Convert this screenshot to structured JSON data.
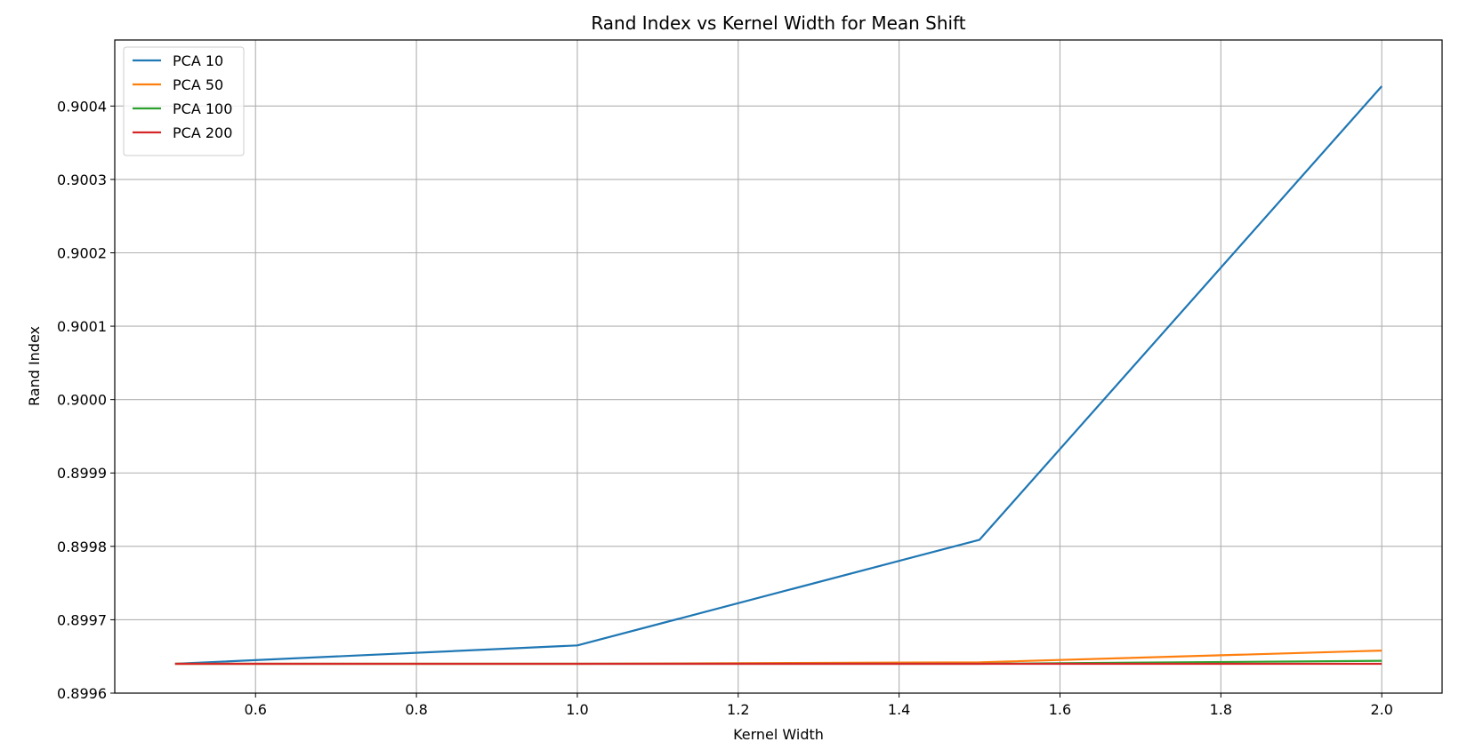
{
  "chart_data": {
    "type": "line",
    "title": "Rand Index vs Kernel Width for Mean Shift",
    "xlabel": "Kernel Width",
    "ylabel": "Rand Index",
    "xlim": [
      0.425,
      2.075
    ],
    "ylim": [
      0.8996,
      0.90049
    ],
    "xticks": [
      0.6,
      0.8,
      1.0,
      1.2,
      1.4,
      1.6,
      1.8,
      2.0
    ],
    "xtick_labels": [
      "0.6",
      "0.8",
      "1.0",
      "1.2",
      "1.4",
      "1.6",
      "1.8",
      "2.0"
    ],
    "yticks": [
      0.8996,
      0.8997,
      0.8998,
      0.8999,
      0.9,
      0.9001,
      0.9002,
      0.9003,
      0.9004
    ],
    "ytick_labels": [
      "0.8996",
      "0.8997",
      "0.8998",
      "0.8999",
      "0.9000",
      "0.9001",
      "0.9002",
      "0.9003",
      "0.9004"
    ],
    "grid": true,
    "legend_position": "top-left",
    "x": [
      0.5,
      1.0,
      1.5,
      2.0
    ],
    "series": [
      {
        "name": "PCA 10",
        "color": "#1f77b4",
        "values": [
          0.89964,
          0.899665,
          0.899809,
          0.900427
        ]
      },
      {
        "name": "PCA 50",
        "color": "#ff7f0e",
        "values": [
          0.89964,
          0.89964,
          0.899642,
          0.899658
        ]
      },
      {
        "name": "PCA 100",
        "color": "#2ca02c",
        "values": [
          0.89964,
          0.89964,
          0.89964,
          0.899644
        ]
      },
      {
        "name": "PCA 200",
        "color": "#d62728",
        "values": [
          0.89964,
          0.89964,
          0.89964,
          0.89964
        ]
      }
    ]
  }
}
